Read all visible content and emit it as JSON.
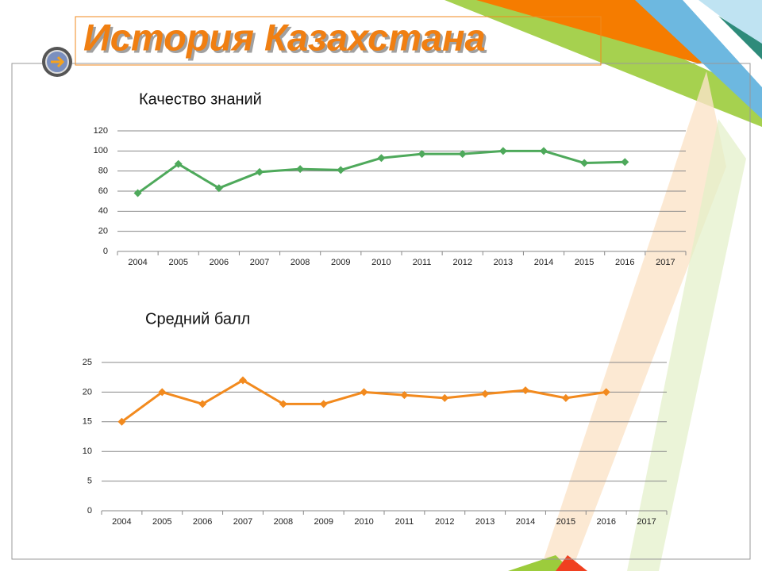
{
  "header": {
    "title": "История Казахстана"
  },
  "chart_data": [
    {
      "type": "line",
      "title": "Качество знаний",
      "categories": [
        "2004",
        "2005",
        "2006",
        "2007",
        "2008",
        "2009",
        "2010",
        "2011",
        "2012",
        "2013",
        "2014",
        "2015",
        "2016",
        "2017"
      ],
      "values": [
        58,
        87,
        63,
        79,
        82,
        81,
        93,
        97,
        97,
        100,
        100,
        88,
        89,
        null
      ],
      "color": "#4ea95b",
      "ylim": [
        0,
        120
      ],
      "yticks": [
        0,
        20,
        40,
        60,
        80,
        100,
        120
      ],
      "grid": true
    },
    {
      "type": "line",
      "title": "Средний балл",
      "categories": [
        "2004",
        "2005",
        "2006",
        "2007",
        "2008",
        "2009",
        "2010",
        "2011",
        "2012",
        "2013",
        "2014",
        "2015",
        "2016",
        "2017"
      ],
      "values": [
        15,
        20,
        18,
        22,
        18,
        18,
        20,
        19.5,
        19,
        19.7,
        20.3,
        19,
        20,
        null
      ],
      "color": "#f28a1e",
      "ylim": [
        0,
        25
      ],
      "yticks": [
        0,
        5,
        10,
        15,
        20,
        25
      ],
      "grid": true
    }
  ]
}
